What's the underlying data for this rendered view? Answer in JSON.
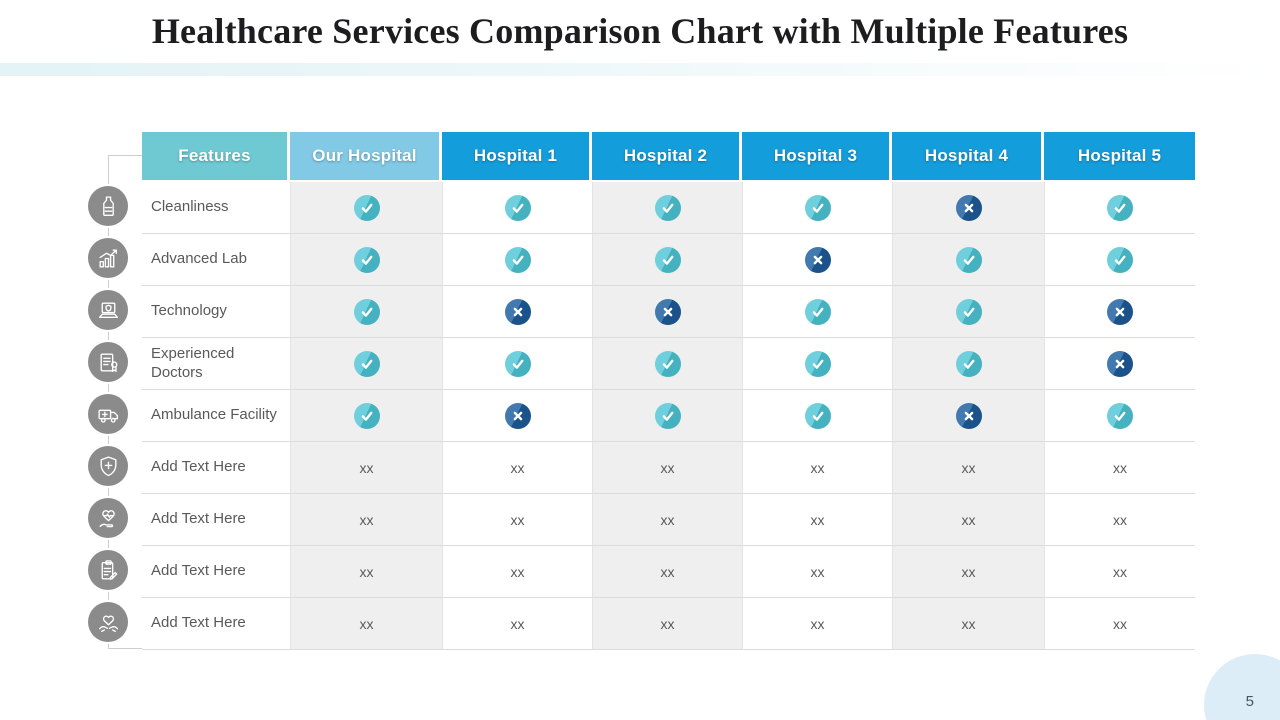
{
  "slide": {
    "title": "Healthcare Services Comparison Chart with Multiple Features",
    "page_number": "5"
  },
  "chart_data": {
    "type": "table",
    "title": "Healthcare Services Comparison Chart with Multiple Features",
    "columns": [
      "Features",
      "Our Hospital",
      "Hospital 1",
      "Hospital 2",
      "Hospital 3",
      "Hospital 4",
      "Hospital 5"
    ],
    "rows": [
      {
        "feature": "Cleanliness",
        "icon": "cleaning-bottle-icon",
        "values": [
          "check",
          "check",
          "check",
          "check",
          "cross",
          "check"
        ]
      },
      {
        "feature": "Advanced Lab",
        "icon": "growth-chart-icon",
        "values": [
          "check",
          "check",
          "check",
          "cross",
          "check",
          "check"
        ]
      },
      {
        "feature": "Technology",
        "icon": "laptop-shield-icon",
        "values": [
          "check",
          "cross",
          "cross",
          "check",
          "check",
          "cross"
        ]
      },
      {
        "feature": "Experienced Doctors",
        "icon": "doctor-certificate-icon",
        "values": [
          "check",
          "check",
          "check",
          "check",
          "check",
          "cross"
        ]
      },
      {
        "feature": "Ambulance Facility",
        "icon": "ambulance-icon",
        "values": [
          "check",
          "cross",
          "check",
          "check",
          "cross",
          "check"
        ]
      },
      {
        "feature": "Add Text Here",
        "icon": "medical-shield-icon",
        "values": [
          "xx",
          "xx",
          "xx",
          "xx",
          "xx",
          "xx"
        ]
      },
      {
        "feature": "Add Text Here",
        "icon": "heart-pulse-hand-icon",
        "values": [
          "xx",
          "xx",
          "xx",
          "xx",
          "xx",
          "xx"
        ]
      },
      {
        "feature": "Add Text Here",
        "icon": "medical-clipboard-icon",
        "values": [
          "xx",
          "xx",
          "xx",
          "xx",
          "xx",
          "xx"
        ]
      },
      {
        "feature": "Add Text Here",
        "icon": "hands-holding-heart-icon",
        "values": [
          "xx",
          "xx",
          "xx",
          "xx",
          "xx",
          "xx"
        ]
      }
    ]
  },
  "colors": {
    "features_header_bg": "#6fc9d2",
    "our_hospital_header_bg": "#82c9e6",
    "hospital_header_bg": "#149ddb",
    "header_text": "#ffffff",
    "check_bg": "#4cc3d3",
    "cross_bg": "#1e5f9f",
    "alt_cell_bg": "#efefef",
    "row_border": "#dcdcdc",
    "feature_text": "#595959",
    "icon_circle_bg": "#8b8b8b",
    "page_badge_bg": "#ddedf8",
    "page_number_text": "#44546a"
  }
}
